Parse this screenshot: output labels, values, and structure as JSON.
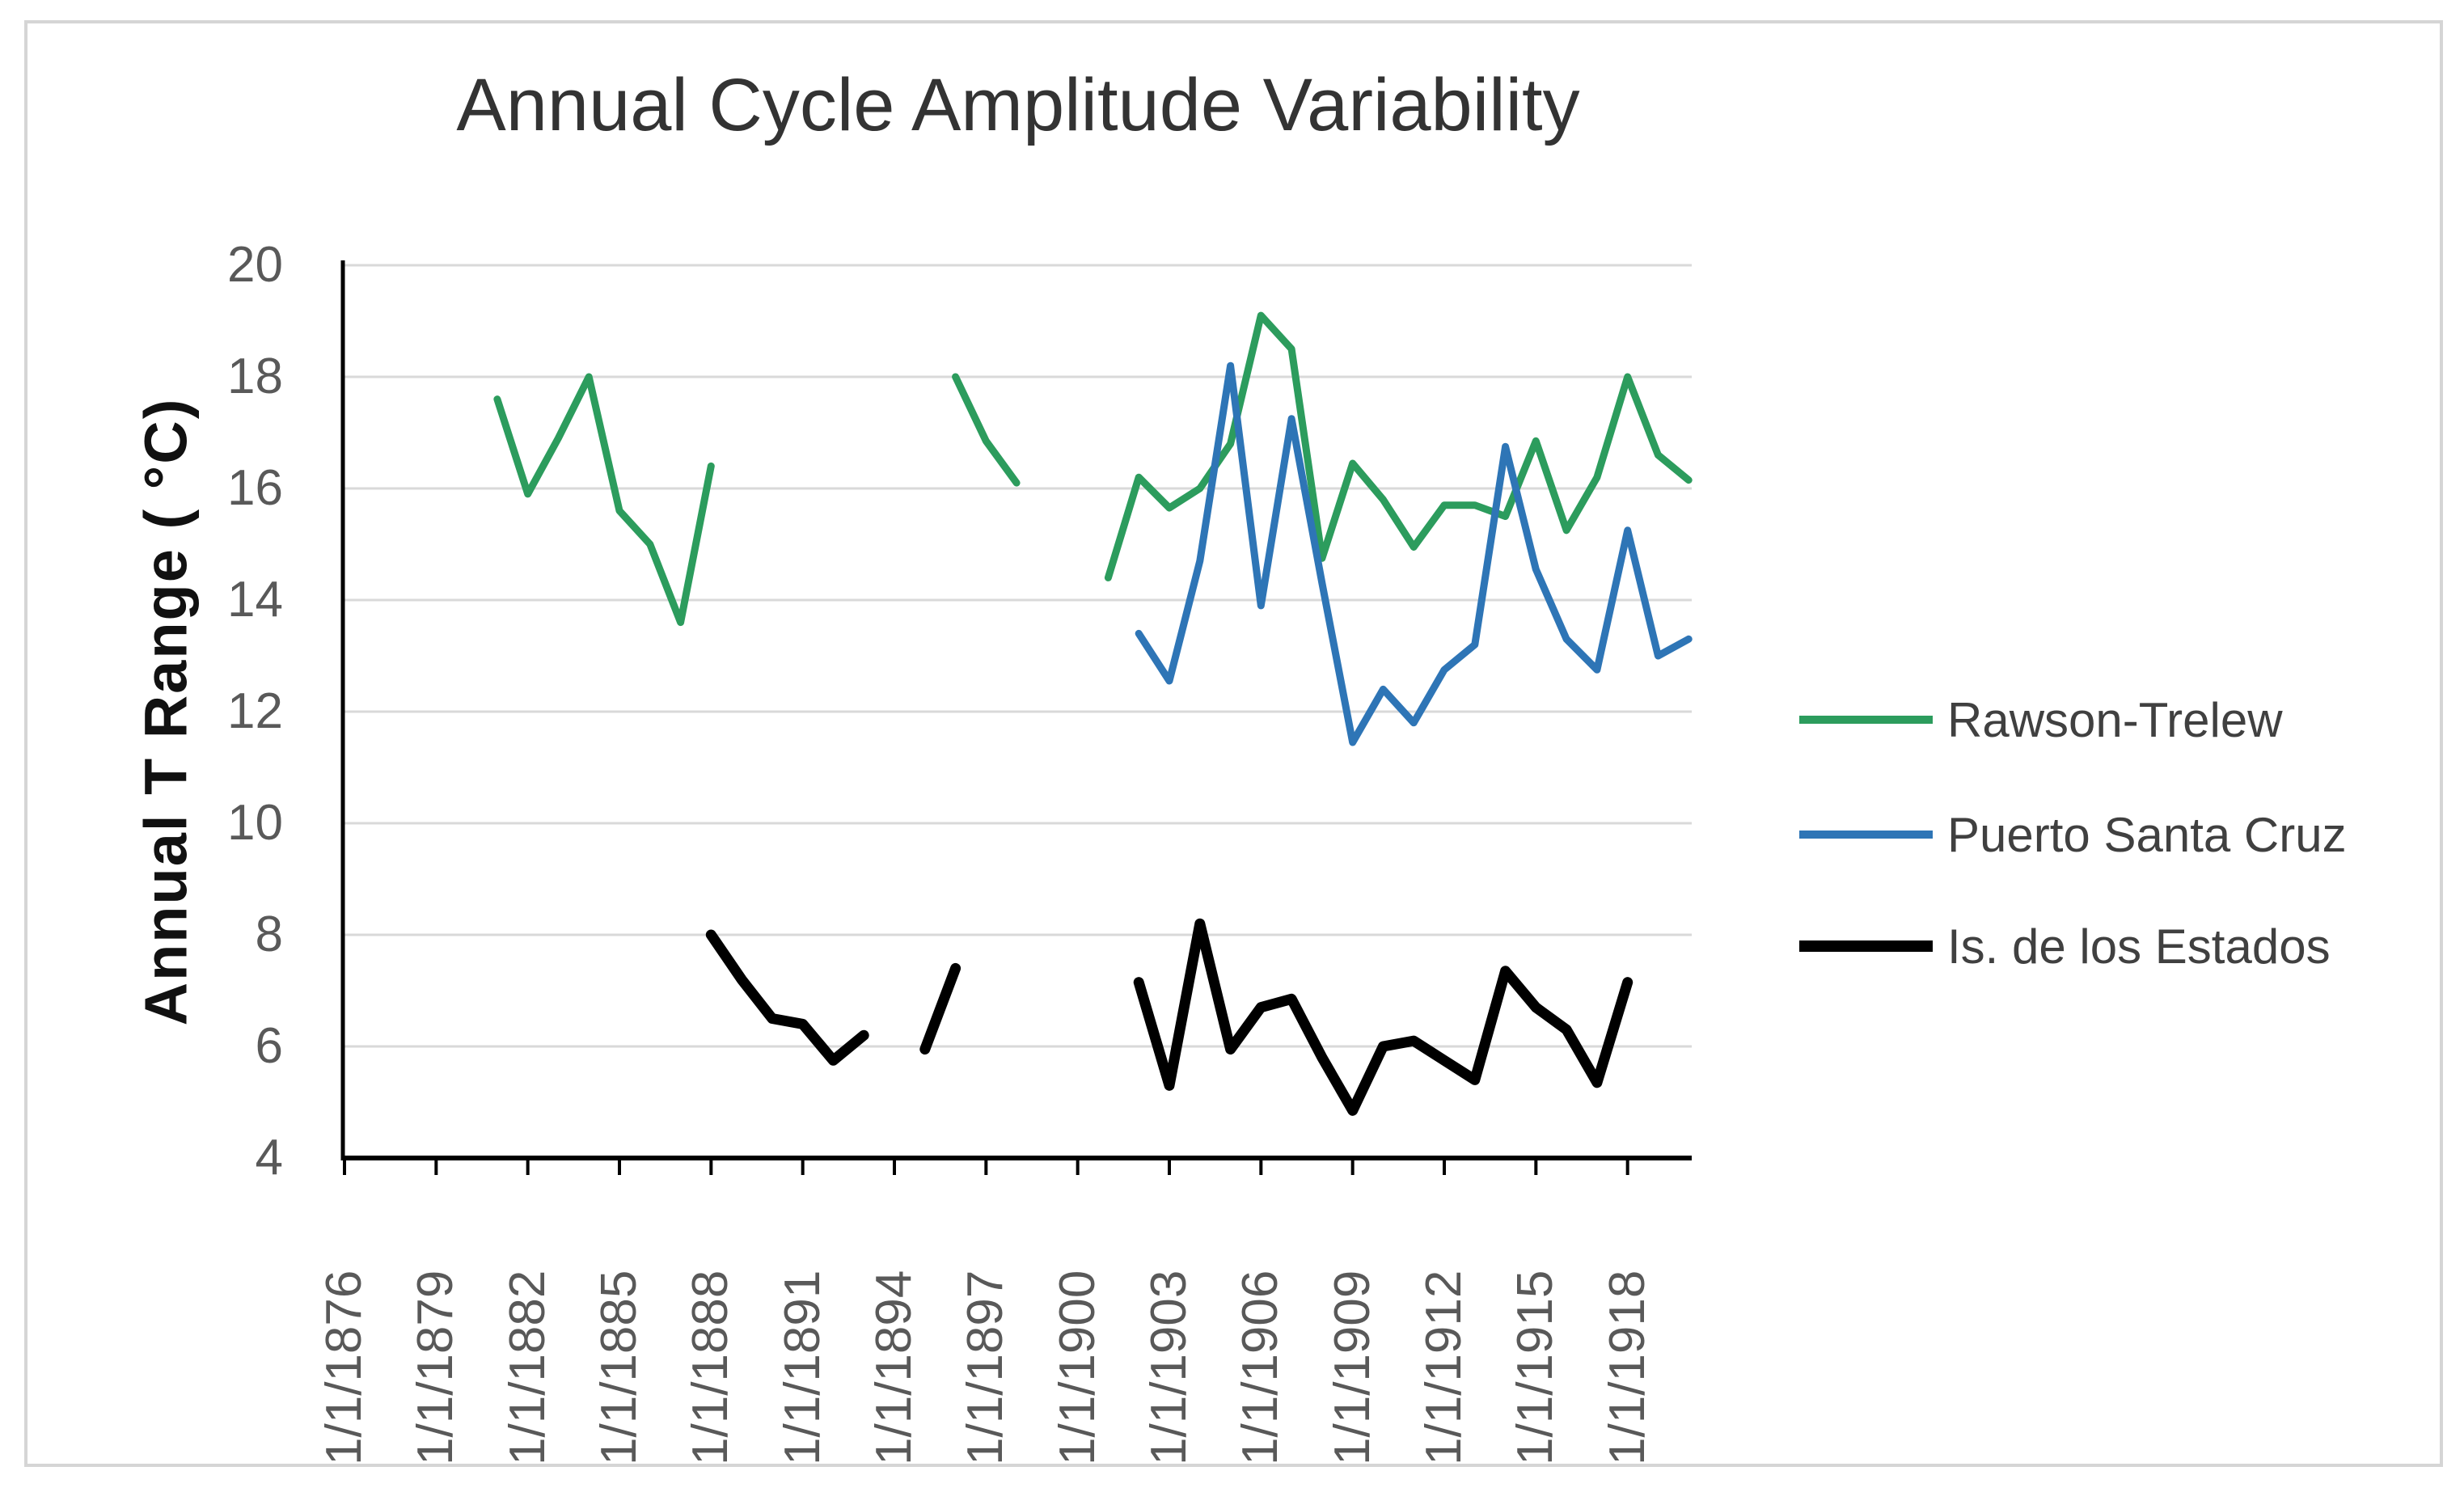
{
  "title": "Annual Cycle Amplitude Variability",
  "chart_data": {
    "type": "line",
    "title": "Annual Cycle Amplitude Variability",
    "xlabel": "",
    "ylabel": "Annual T Range ( °C)",
    "ylim": [
      4,
      20
    ],
    "xlim_years": [
      1876,
      1920.1
    ],
    "grid": "horizontal",
    "legend_position": "right",
    "y_ticks": [
      20,
      18,
      16,
      14,
      12,
      10,
      8,
      6,
      4
    ],
    "x_tick_years": [
      1876,
      1879,
      1882,
      1885,
      1888,
      1891,
      1894,
      1897,
      1900,
      1903,
      1906,
      1909,
      1912,
      1915,
      1918
    ],
    "x_tick_labels": [
      "1/1/1876",
      "1/1/1879",
      "1/1/1882",
      "1/1/1885",
      "1/1/1888",
      "1/1/1891",
      "1/1/1894",
      "1/1/1897",
      "1/1/1900",
      "1/1/1903",
      "1/1/1906",
      "1/1/1909",
      "1/1/1912",
      "1/1/1915",
      "1/1/1918"
    ],
    "series": [
      {
        "name": "Rawson-Trelew",
        "color": "#2C9C5D",
        "line_width": 9,
        "segments": [
          [
            [
              1881,
              17.6
            ],
            [
              1882,
              15.9
            ],
            [
              1883,
              16.9
            ],
            [
              1884,
              18.0
            ],
            [
              1885,
              15.6
            ],
            [
              1886,
              15.0
            ],
            [
              1887,
              13.6
            ],
            [
              1888,
              16.4
            ]
          ],
          [
            [
              1896,
              18.0
            ],
            [
              1897,
              16.85
            ],
            [
              1898,
              16.1
            ]
          ],
          [
            [
              1901,
              14.4
            ],
            [
              1902,
              16.2
            ],
            [
              1903,
              15.65
            ],
            [
              1904,
              16.0
            ],
            [
              1905,
              16.8
            ],
            [
              1906,
              19.1
            ],
            [
              1907,
              18.5
            ],
            [
              1908,
              14.75
            ],
            [
              1909,
              16.45
            ],
            [
              1910,
              15.8
            ],
            [
              1911,
              14.95
            ],
            [
              1912,
              15.7
            ],
            [
              1913,
              15.7
            ],
            [
              1914,
              15.5
            ],
            [
              1915,
              16.85
            ],
            [
              1916,
              15.25
            ],
            [
              1917,
              16.2
            ],
            [
              1918,
              18.0
            ],
            [
              1919,
              16.6
            ],
            [
              1920,
              16.15
            ]
          ]
        ]
      },
      {
        "name": "Puerto Santa Cruz",
        "color": "#2E75B6",
        "line_width": 9,
        "segments": [
          [
            [
              1902,
              13.4
            ],
            [
              1903,
              12.55
            ],
            [
              1904,
              14.7
            ],
            [
              1905,
              18.2
            ],
            [
              1906,
              13.9
            ],
            [
              1907,
              17.25
            ],
            [
              1908,
              14.3
            ],
            [
              1909,
              11.45
            ],
            [
              1910,
              12.4
            ],
            [
              1911,
              11.8
            ],
            [
              1912,
              12.75
            ],
            [
              1913,
              13.2
            ],
            [
              1914,
              16.75
            ],
            [
              1915,
              14.55
            ],
            [
              1916,
              13.3
            ],
            [
              1917,
              12.75
            ],
            [
              1918,
              15.25
            ],
            [
              1919,
              13.0
            ],
            [
              1920,
              13.3
            ]
          ]
        ]
      },
      {
        "name": "Is. de los Estados",
        "color": "#000000",
        "line_width": 13,
        "segments": [
          [
            [
              1888,
              8.0
            ],
            [
              1889,
              7.2
            ],
            [
              1890,
              6.5
            ],
            [
              1891,
              6.4
            ],
            [
              1892,
              5.75
            ],
            [
              1893,
              6.2
            ]
          ],
          [
            [
              1895,
              5.95
            ],
            [
              1896,
              7.4
            ]
          ],
          [
            [
              1902,
              7.15
            ],
            [
              1903,
              5.3
            ],
            [
              1904,
              8.2
            ],
            [
              1905,
              5.95
            ],
            [
              1906,
              6.7
            ],
            [
              1907,
              6.85
            ],
            [
              1908,
              5.8
            ],
            [
              1909,
              4.85
            ],
            [
              1910,
              6.0
            ],
            [
              1911,
              6.1
            ],
            [
              1912,
              5.75
            ],
            [
              1913,
              5.4
            ],
            [
              1914,
              7.35
            ],
            [
              1915,
              6.7
            ],
            [
              1916,
              6.3
            ],
            [
              1917,
              5.35
            ],
            [
              1918,
              7.15
            ]
          ]
        ]
      }
    ]
  }
}
